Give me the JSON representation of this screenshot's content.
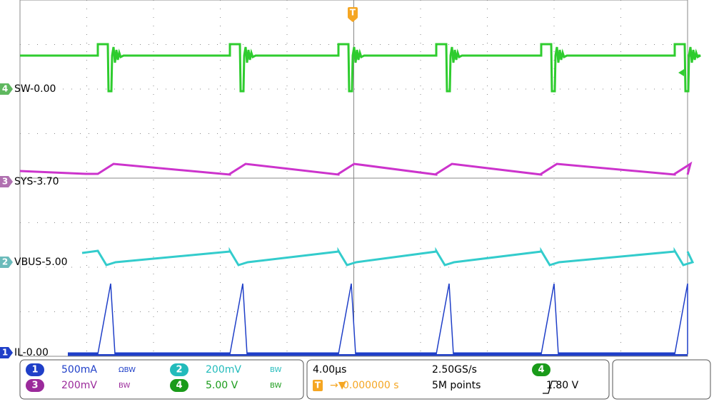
{
  "channels": [
    {
      "number": "4",
      "label": "SW-0.00"
    },
    {
      "number": "3",
      "label": "SYS-3.70"
    },
    {
      "number": "2",
      "label": "VBUS-5.00"
    },
    {
      "number": "1",
      "label": "IL-0.00"
    }
  ],
  "trigger_marker": "T",
  "vertical": [
    {
      "number": "1",
      "scale": "500mA",
      "flags": "ΩBW"
    },
    {
      "number": "2",
      "scale": "200mV",
      "flags": "BW"
    },
    {
      "number": "3",
      "scale": "200mV",
      "flags": "BW"
    },
    {
      "number": "4",
      "scale": "5.00 V",
      "flags": "BW"
    }
  ],
  "horizontal": {
    "time_div": "4.00µs",
    "sample_rate": "2.50GS/s",
    "trigger_icon": "T",
    "trigger_position": "0.000000 s",
    "record_length": "5M points"
  },
  "trigger": {
    "source": "4",
    "level": "1.80 V"
  }
}
